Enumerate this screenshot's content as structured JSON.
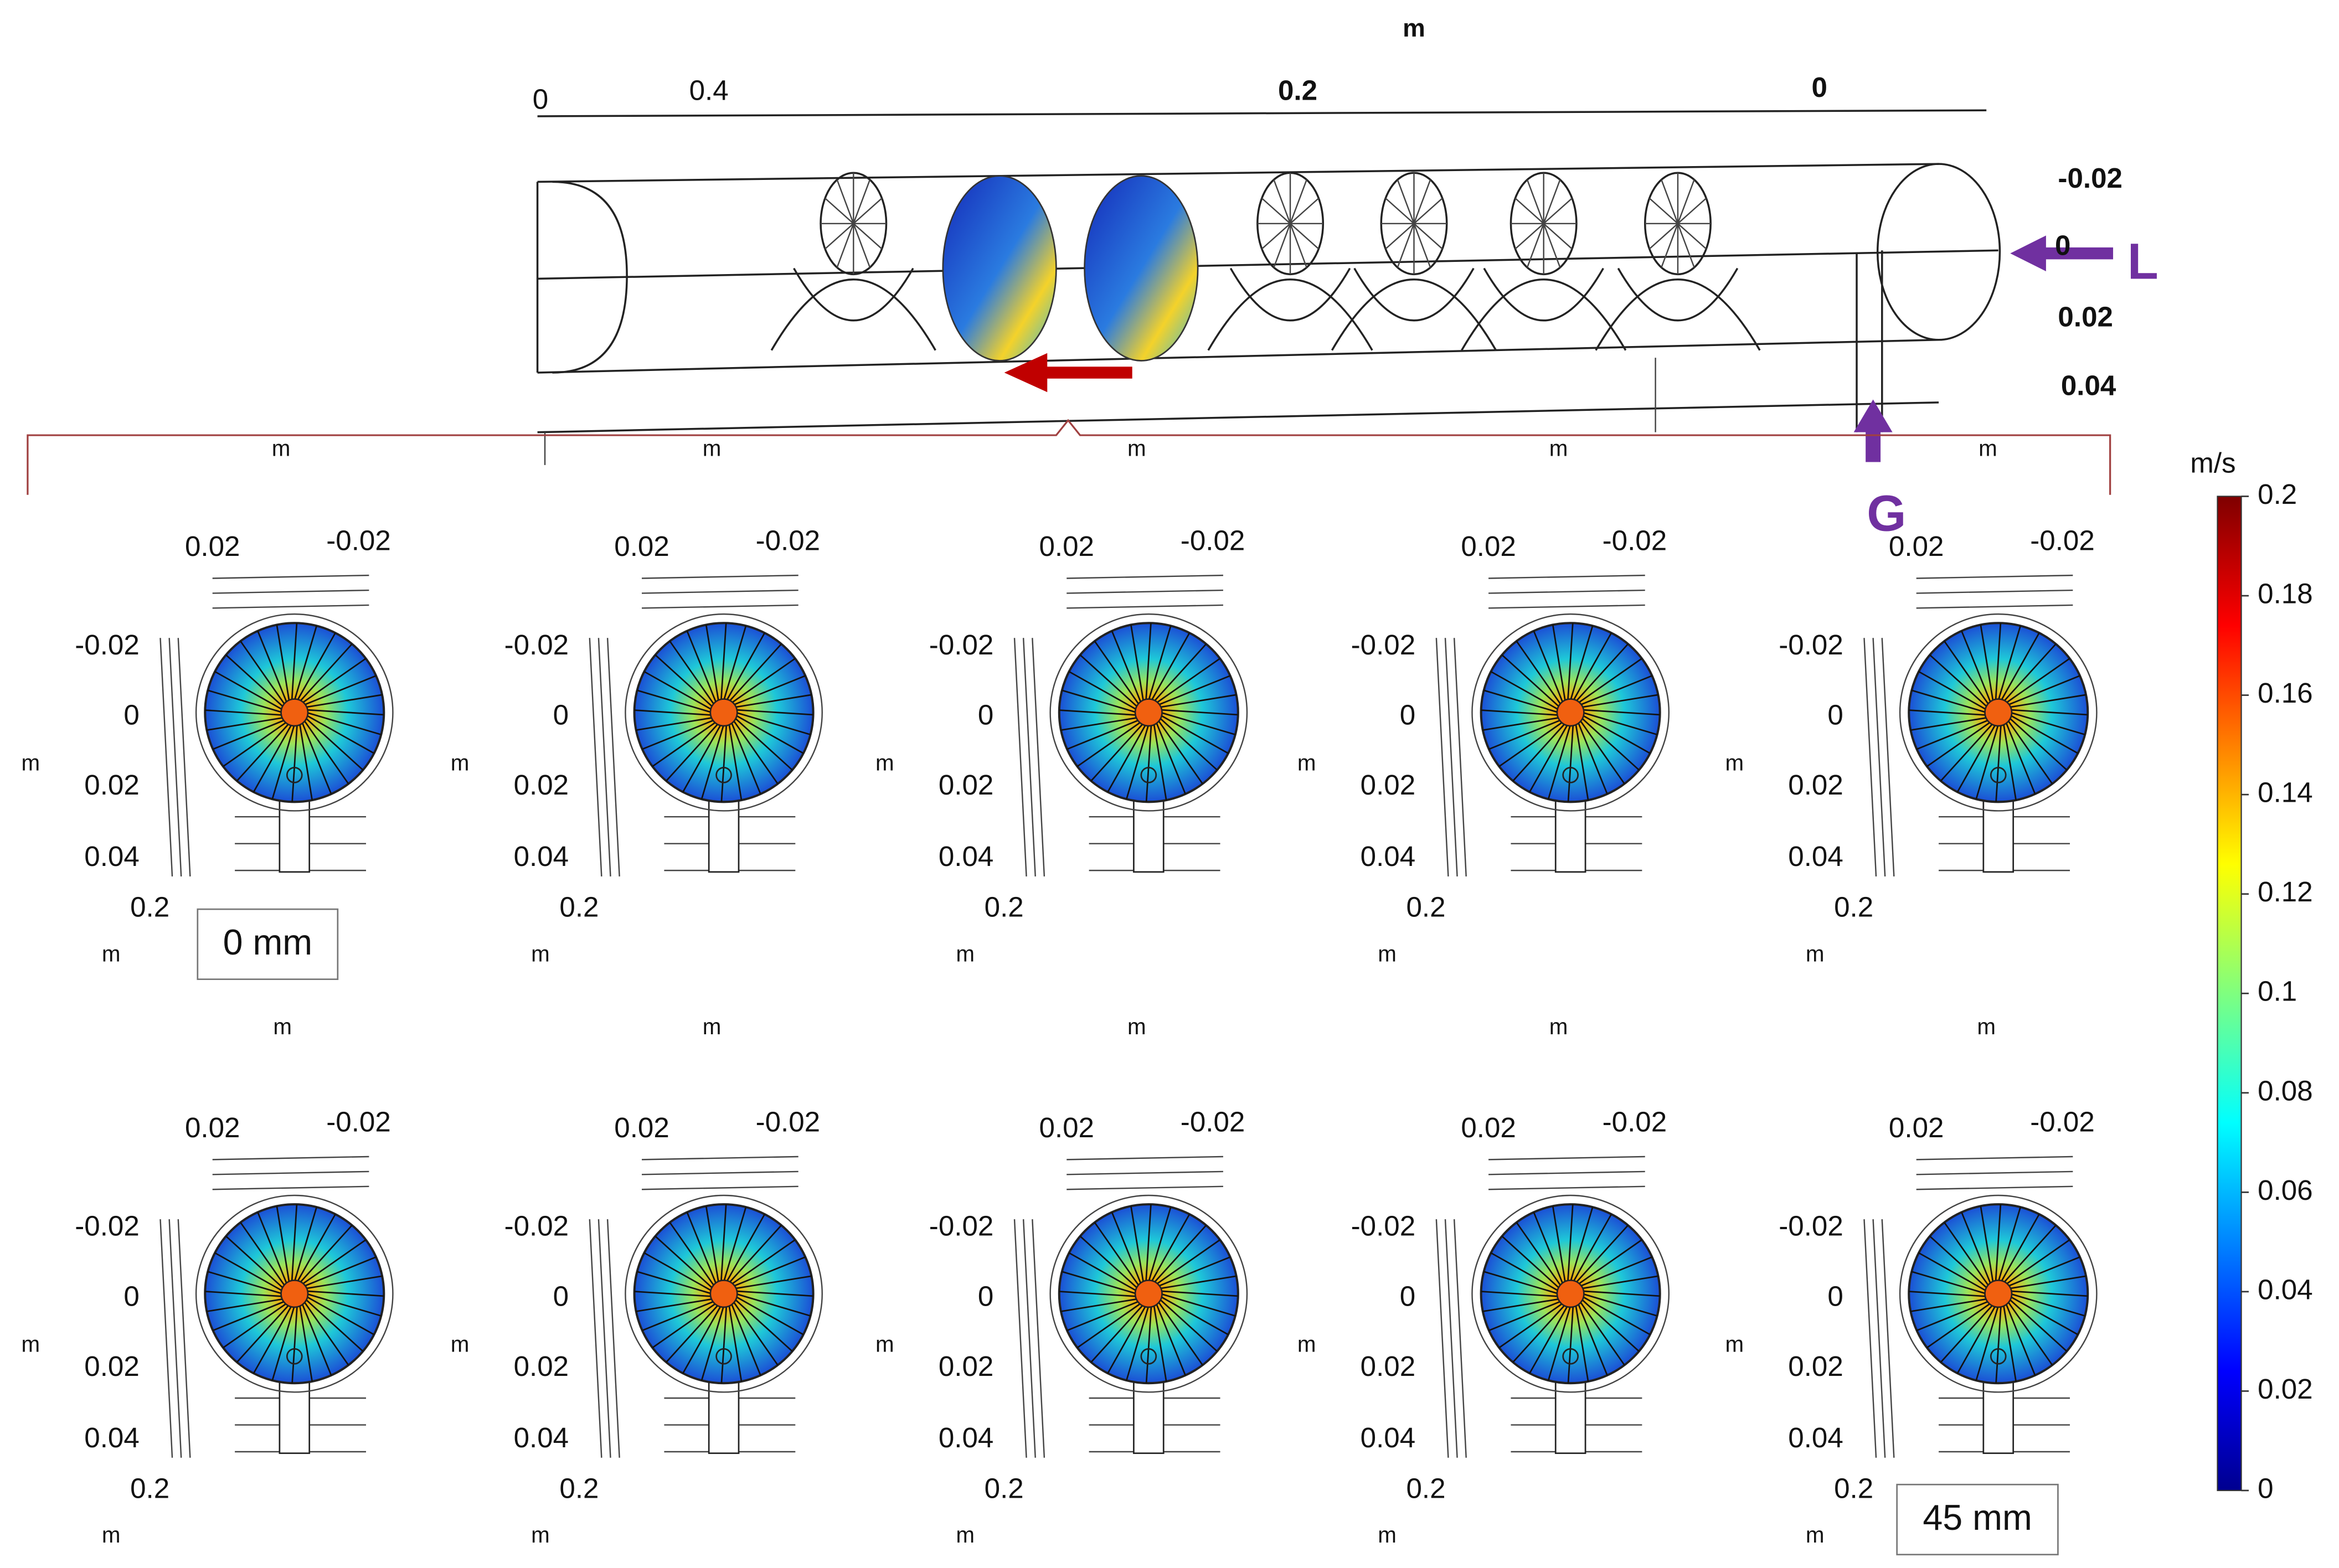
{
  "top_view": {
    "axis_title": "m",
    "x_ticks": [
      "0",
      "0.4",
      "0.2",
      "0"
    ],
    "y_ticks": [
      "-0.02",
      "0",
      "0.02",
      "0.04"
    ],
    "bottom_unit": "m",
    "inlet_l": "L",
    "inlet_g": "G"
  },
  "panel_axes": {
    "top_ticks": [
      "0.02",
      "-0.02"
    ],
    "side_ticks": [
      "-0.02",
      "0",
      "0.02",
      "0.04"
    ],
    "depth_tick": "0.2",
    "unit": "m"
  },
  "annotations": {
    "first": "0 mm",
    "last": "45 mm"
  },
  "colorbar": {
    "unit": "m/s",
    "range": [
      0,
      0.2
    ],
    "ticks": [
      0,
      0.02,
      0.04,
      0.06,
      0.08,
      0.1,
      0.12,
      0.14,
      0.16,
      0.18,
      0.2
    ]
  }
}
